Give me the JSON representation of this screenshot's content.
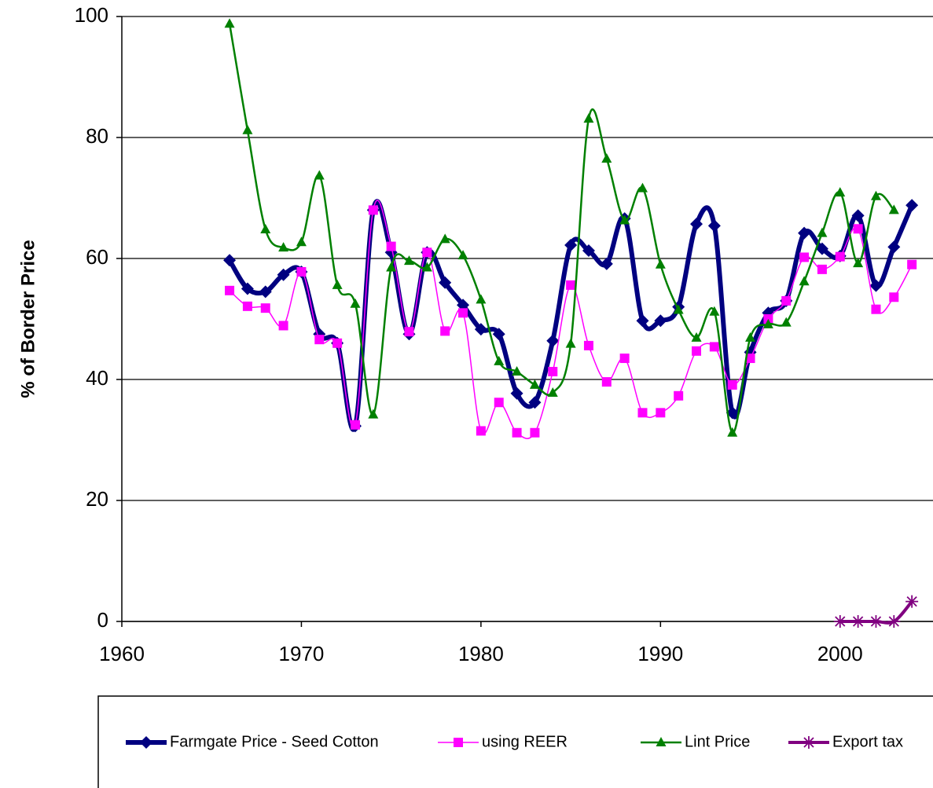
{
  "chart_data": {
    "type": "line",
    "y_label": "% of Border Price",
    "x": [
      1966,
      1967,
      1968,
      1969,
      1970,
      1971,
      1972,
      1973,
      1974,
      1975,
      1976,
      1977,
      1978,
      1979,
      1980,
      1981,
      1982,
      1983,
      1984,
      1985,
      1986,
      1987,
      1988,
      1989,
      1990,
      1991,
      1992,
      1993,
      1994,
      1995,
      1996,
      1997,
      1998,
      1999,
      2000,
      2001,
      2002,
      2003,
      2004
    ],
    "series": [
      {
        "name": "Farmgate Price - Seed Cotton",
        "color": "#000080",
        "marker": "diamond",
        "values": [
          59.7,
          55,
          54.5,
          57.3,
          57.8,
          47.5,
          46,
          32.3,
          68,
          61,
          47.5,
          61,
          56,
          52.3,
          48.3,
          47.5,
          37.7,
          36.2,
          46.4,
          62.2,
          61.3,
          59.1,
          66.6,
          49.7,
          49.7,
          52,
          65.7,
          65.4,
          34.5,
          44.5,
          51,
          53,
          64.2,
          61.6,
          60.4,
          67.1,
          55.5,
          61.9,
          68.8
        ]
      },
      {
        "name": "using REER",
        "color": "#ff00ff",
        "marker": "square",
        "values": [
          54.7,
          52.1,
          51.8,
          48.9,
          57.8,
          46.6,
          46,
          32.5,
          68,
          62,
          47.9,
          61,
          48,
          51,
          31.5,
          36.2,
          31.2,
          31.2,
          41.3,
          55.6,
          45.6,
          39.6,
          43.5,
          34.5,
          34.5,
          37.3,
          44.7,
          45.4,
          39.1,
          43.5,
          50,
          53,
          60.2,
          58.2,
          60.3,
          64.9,
          51.6,
          53.6,
          59
        ]
      },
      {
        "name": "Lint Price",
        "color": "#008000",
        "marker": "triangle",
        "values": [
          98.8,
          81.2,
          64.8,
          61.8,
          62.7,
          73.7,
          55.6,
          52.5,
          34.2,
          58.5,
          59.6,
          58.5,
          63.2,
          60.5,
          53.2,
          43,
          41.3,
          39.1,
          37.8,
          45.9,
          83.1,
          76.5,
          66.3,
          71.6,
          59,
          51.5,
          46.9,
          51.2,
          31.2,
          46.9,
          49.1,
          49.4,
          56.2,
          64.2,
          70.9,
          59.2,
          70.3,
          68,
          null
        ]
      },
      {
        "name": "Export tax",
        "color": "#800080",
        "marker": "star",
        "values": [
          null,
          null,
          null,
          null,
          null,
          null,
          null,
          null,
          null,
          null,
          null,
          null,
          null,
          null,
          null,
          null,
          null,
          null,
          null,
          null,
          null,
          null,
          null,
          null,
          null,
          null,
          null,
          null,
          null,
          null,
          null,
          null,
          null,
          null,
          0,
          0,
          0,
          0,
          3.3
        ]
      }
    ],
    "xlim": [
      1960,
      2005
    ],
    "xticks": [
      1960,
      1970,
      1980,
      1990,
      2000
    ],
    "ylim": [
      0,
      100
    ],
    "yticks": [
      0,
      20,
      40,
      60,
      80,
      100
    ],
    "grid": true,
    "legend": "bottom"
  }
}
